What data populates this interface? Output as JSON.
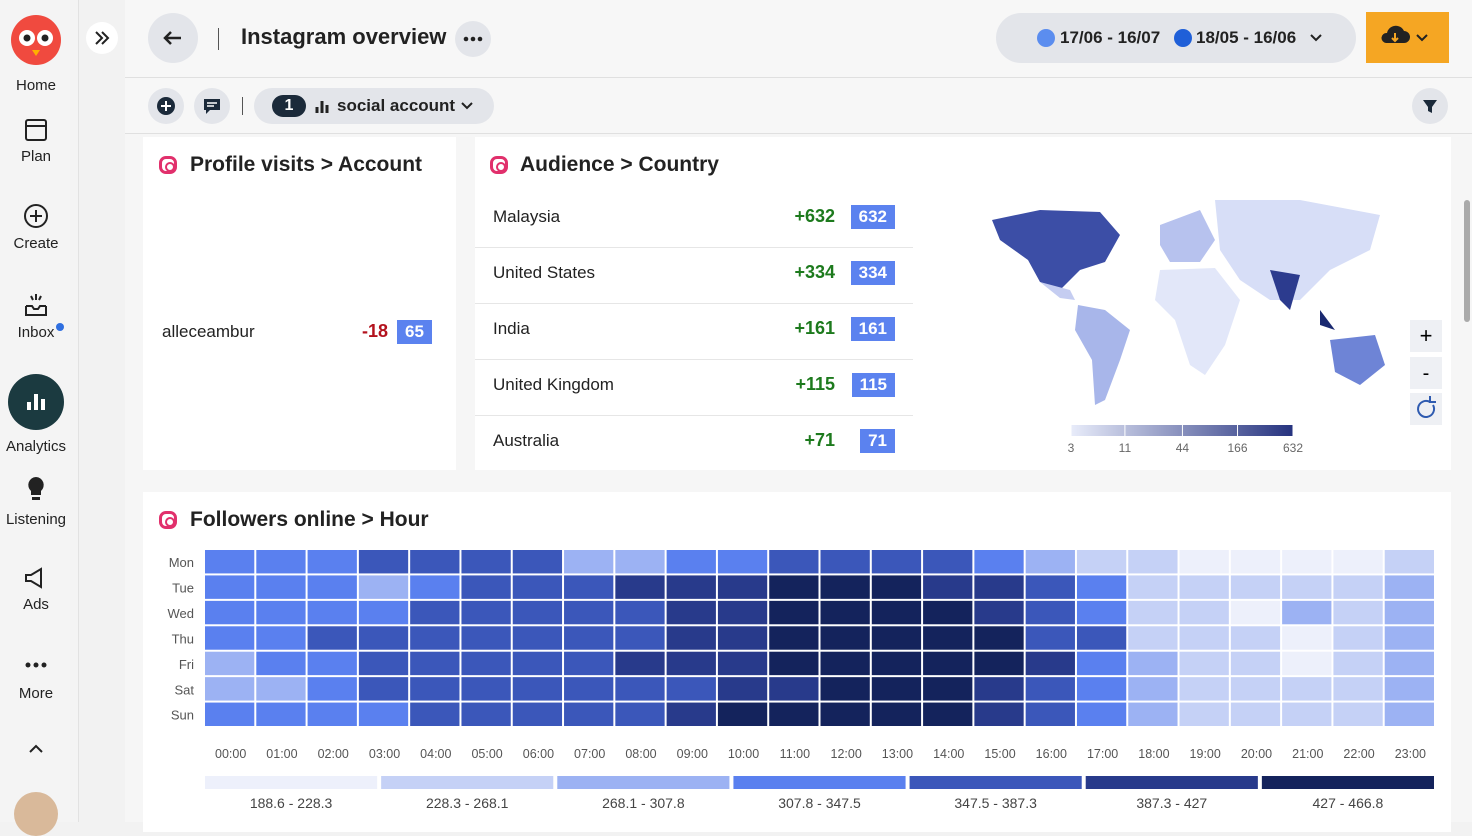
{
  "sidebar": {
    "items": [
      "Home",
      "Plan",
      "Create",
      "Inbox",
      "Analytics",
      "Listening",
      "Ads",
      "More"
    ]
  },
  "header": {
    "title": "Instagram overview",
    "date_ranges": [
      "17/06 - 16/07",
      "18/05 - 16/06"
    ]
  },
  "toolbar": {
    "account_count": "1",
    "account_label": "social account"
  },
  "profile_visits": {
    "title": "Profile visits > Account",
    "rows": [
      {
        "name": "alleceambur",
        "change": "-18",
        "value": "65"
      }
    ]
  },
  "audience_country": {
    "title": "Audience > Country",
    "rows": [
      {
        "name": "Malaysia",
        "change": "+632",
        "value": "632"
      },
      {
        "name": "United States",
        "change": "+334",
        "value": "334"
      },
      {
        "name": "India",
        "change": "+161",
        "value": "161"
      },
      {
        "name": "United Kingdom",
        "change": "+115",
        "value": "115"
      },
      {
        "name": "Australia",
        "change": "+71",
        "value": "71"
      }
    ],
    "map_legend": {
      "scale": "log",
      "range": [
        3,
        632
      ],
      "ticks": [
        3,
        11,
        44,
        166,
        632
      ],
      "colors": [
        "#e8ecfa",
        "#26337f"
      ]
    },
    "map_controls": [
      "+",
      "-"
    ]
  },
  "followers_online": {
    "title": "Followers online > Hour",
    "rows": [
      "Mon",
      "Tue",
      "Wed",
      "Thu",
      "Fri",
      "Sat",
      "Sun"
    ],
    "columns": [
      "00:00",
      "01:00",
      "02:00",
      "03:00",
      "04:00",
      "05:00",
      "06:00",
      "07:00",
      "08:00",
      "09:00",
      "10:00",
      "11:00",
      "12:00",
      "13:00",
      "14:00",
      "15:00",
      "16:00",
      "17:00",
      "18:00",
      "19:00",
      "20:00",
      "21:00",
      "22:00",
      "23:00"
    ],
    "values": [
      [
        328,
        328,
        328,
        367,
        367,
        367,
        367,
        288,
        288,
        328,
        328,
        367,
        367,
        367,
        367,
        328,
        288,
        248,
        248,
        208,
        208,
        208,
        208,
        248
      ],
      [
        328,
        328,
        328,
        288,
        328,
        367,
        367,
        367,
        407,
        407,
        407,
        447,
        447,
        447,
        407,
        407,
        367,
        328,
        248,
        248,
        248,
        248,
        248,
        288
      ],
      [
        328,
        328,
        328,
        328,
        367,
        367,
        367,
        367,
        367,
        407,
        407,
        447,
        447,
        447,
        447,
        407,
        367,
        328,
        248,
        248,
        208,
        288,
        248,
        288
      ],
      [
        328,
        328,
        367,
        367,
        367,
        367,
        367,
        367,
        367,
        407,
        407,
        447,
        447,
        447,
        447,
        447,
        367,
        367,
        248,
        248,
        248,
        208,
        248,
        288
      ],
      [
        288,
        328,
        328,
        367,
        367,
        367,
        367,
        367,
        407,
        407,
        407,
        447,
        447,
        447,
        447,
        447,
        407,
        328,
        288,
        248,
        248,
        208,
        248,
        288
      ],
      [
        288,
        288,
        328,
        367,
        367,
        367,
        367,
        367,
        367,
        367,
        407,
        407,
        447,
        447,
        447,
        407,
        367,
        328,
        288,
        248,
        248,
        248,
        248,
        288
      ],
      [
        328,
        328,
        328,
        328,
        367,
        367,
        367,
        367,
        367,
        407,
        447,
        447,
        447,
        447,
        447,
        407,
        367,
        328,
        288,
        248,
        248,
        248,
        248,
        288
      ]
    ],
    "bins": [
      188.6,
      228.3,
      268.1,
      307.8,
      347.5,
      387.3,
      427,
      466.8
    ],
    "legend": [
      "188.6 - 228.3",
      "228.3 - 268.1",
      "268.1 - 307.8",
      "307.8 - 347.5",
      "347.5 - 387.3",
      "387.3 - 427",
      "427 - 466.8"
    ],
    "colors": [
      "#edf0fb",
      "#c5d1f6",
      "#9cb2f3",
      "#5a80ef",
      "#3b57ba",
      "#283a8b",
      "#14235c"
    ]
  }
}
